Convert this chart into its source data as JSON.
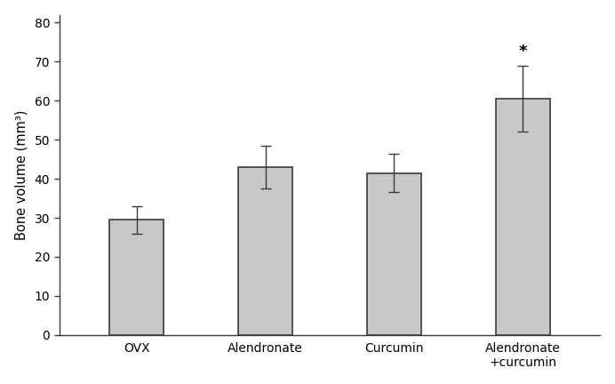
{
  "categories": [
    "OVX",
    "Alendronate",
    "Curcumin",
    "Alendronate\n+curcumin"
  ],
  "values": [
    29.5,
    43.0,
    41.5,
    60.5
  ],
  "errors": [
    3.5,
    5.5,
    5.0,
    8.5
  ],
  "bar_color": "#c8c8c8",
  "bar_edgecolor": "#3a3a3a",
  "ylabel": "Bone volume (mm³)",
  "ylim": [
    0,
    82
  ],
  "yticks": [
    0,
    10,
    20,
    30,
    40,
    50,
    60,
    70,
    80
  ],
  "significance_label": "*",
  "significance_bar_index": 3,
  "background_color": "#ffffff",
  "bar_width": 0.42,
  "error_capsize": 4,
  "error_linewidth": 1.0,
  "error_color": "#3a3a3a",
  "bar_edgewidth": 1.2
}
